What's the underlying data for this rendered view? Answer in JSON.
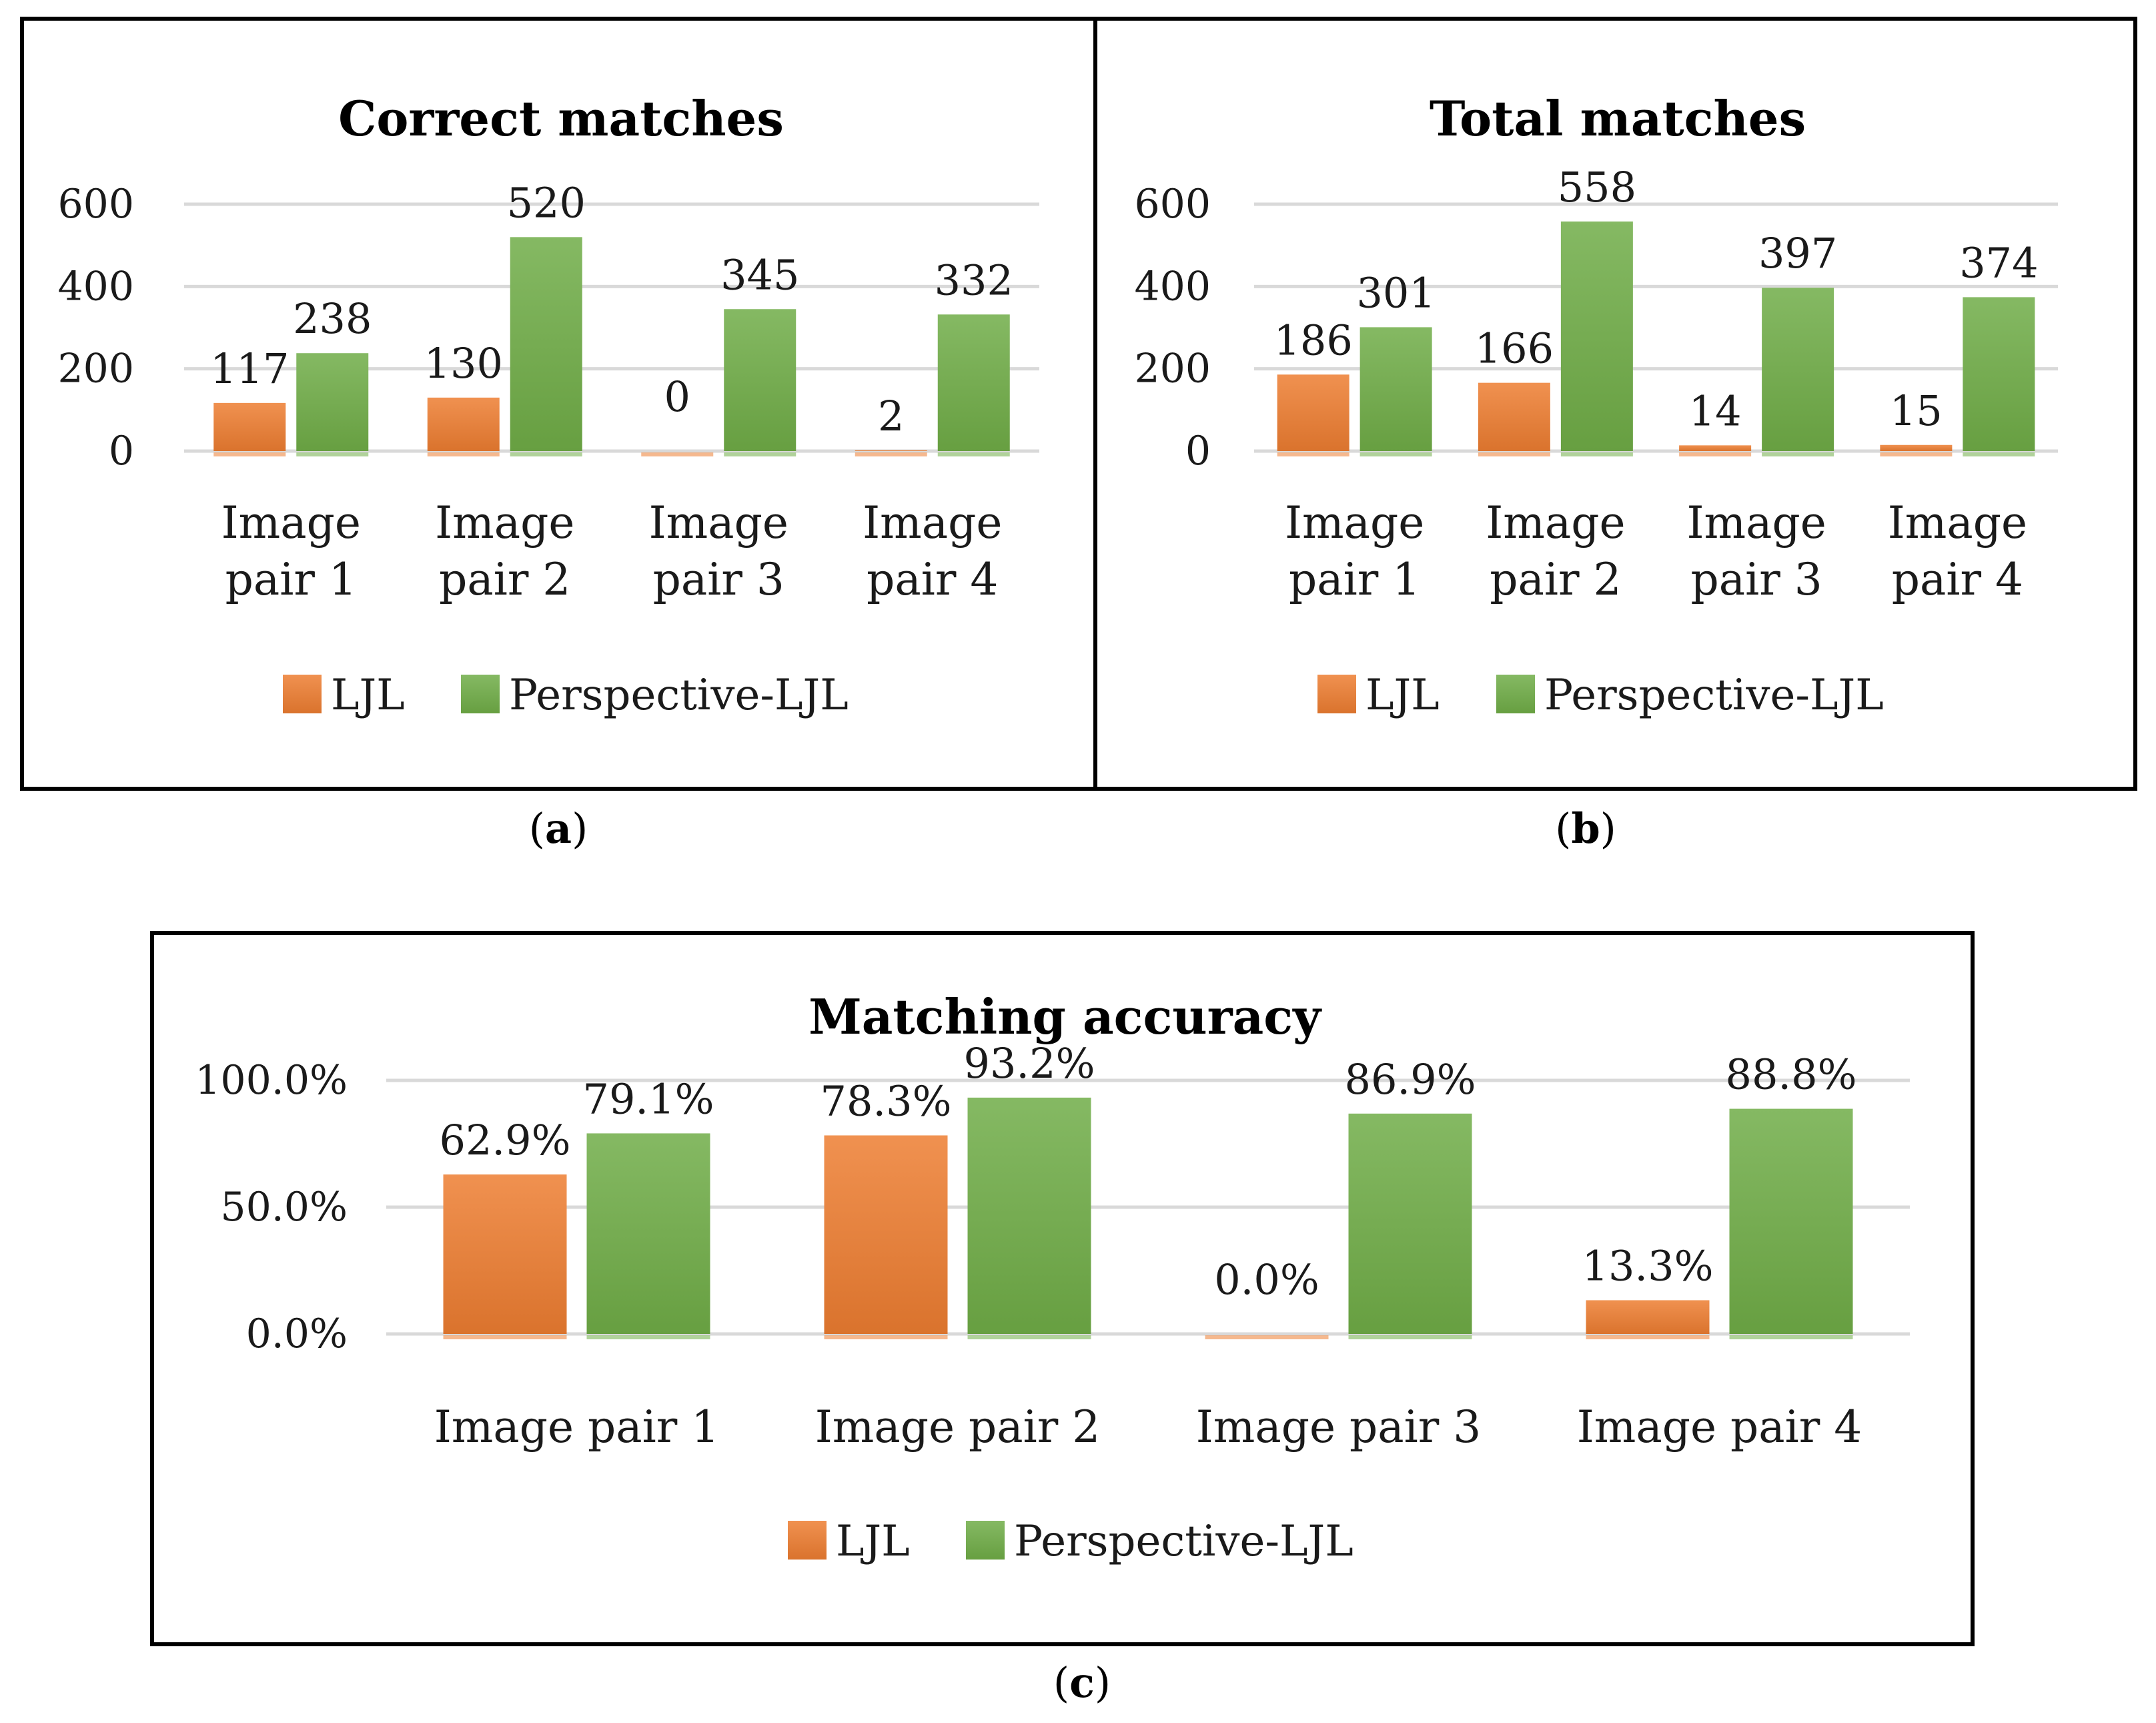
{
  "chart_data": [
    {
      "id": "a",
      "type": "bar",
      "title": "Correct matches",
      "caption": "a",
      "categories": [
        [
          "Image",
          "pair 1"
        ],
        [
          "Image",
          "pair 2"
        ],
        [
          "Image",
          "pair 3"
        ],
        [
          "Image",
          "pair 4"
        ]
      ],
      "series": [
        {
          "name": "LJL",
          "values": [
            117,
            130,
            0,
            2
          ],
          "labels": [
            "117",
            "130",
            "0",
            "2"
          ],
          "color": "#ED7D31"
        },
        {
          "name": "Perspective-LJL",
          "values": [
            238,
            520,
            345,
            332
          ],
          "labels": [
            "238",
            "520",
            "345",
            "332"
          ],
          "color": "#70AD47"
        }
      ],
      "yticks": [
        "0",
        "200",
        "400",
        "600"
      ],
      "ylim": [
        0,
        600
      ],
      "legend": "bottom"
    },
    {
      "id": "b",
      "type": "bar",
      "title": "Total matches",
      "caption": "b",
      "categories": [
        [
          "Image",
          "pair 1"
        ],
        [
          "Image",
          "pair 2"
        ],
        [
          "Image",
          "pair 3"
        ],
        [
          "Image",
          "pair 4"
        ]
      ],
      "series": [
        {
          "name": "LJL",
          "values": [
            186,
            166,
            14,
            15
          ],
          "labels": [
            "186",
            "166",
            "14",
            "15"
          ],
          "color": "#ED7D31"
        },
        {
          "name": "Perspective-LJL",
          "values": [
            301,
            558,
            397,
            374
          ],
          "labels": [
            "301",
            "558",
            "397",
            "374"
          ],
          "color": "#70AD47"
        }
      ],
      "yticks": [
        "0",
        "200",
        "400",
        "600"
      ],
      "ylim": [
        0,
        600
      ],
      "legend": "bottom"
    },
    {
      "id": "c",
      "type": "bar",
      "title": "Matching accuracy",
      "caption": "c",
      "categories": [
        [
          "Image pair 1"
        ],
        [
          "Image pair 2"
        ],
        [
          "Image pair 3"
        ],
        [
          "Image pair 4"
        ]
      ],
      "series": [
        {
          "name": "LJL",
          "values": [
            62.9,
            78.3,
            0.0,
            13.3
          ],
          "labels": [
            "62.9%",
            "78.3%",
            "0.0%",
            "13.3%"
          ],
          "color": "#ED7D31"
        },
        {
          "name": "Perspective-LJL",
          "values": [
            79.1,
            93.2,
            86.9,
            88.8
          ],
          "labels": [
            "79.1%",
            "93.2%",
            "86.9%",
            "88.8%"
          ],
          "color": "#70AD47"
        }
      ],
      "yticks": [
        "0.0%",
        "50.0%",
        "100.0%"
      ],
      "ylim": [
        0,
        100
      ],
      "legend": "bottom"
    }
  ]
}
